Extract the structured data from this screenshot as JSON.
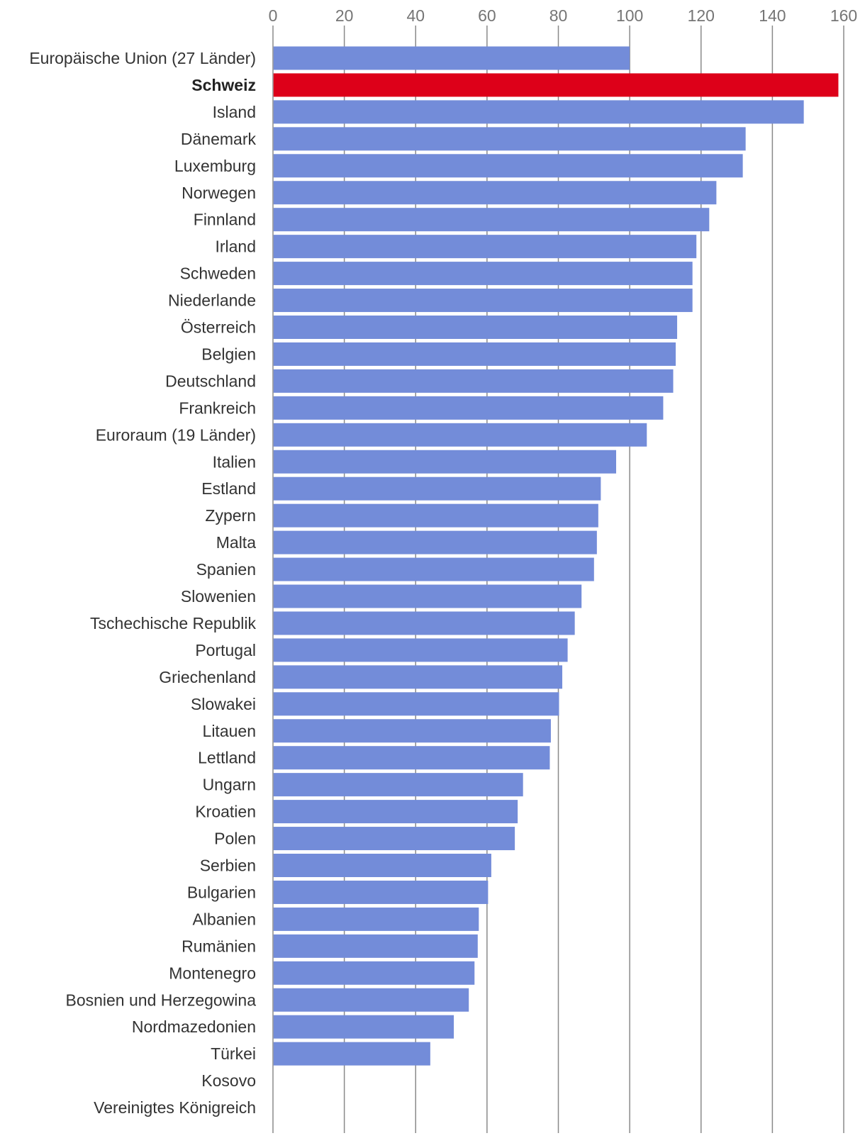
{
  "chart_data": {
    "type": "bar",
    "orientation": "horizontal",
    "title": "",
    "xlabel": "",
    "ylabel": "",
    "xlim": [
      0,
      160
    ],
    "ticks": [
      "0",
      "20",
      "40",
      "60",
      "80",
      "100",
      "120",
      "140",
      "160"
    ],
    "tick_values": [
      0,
      20,
      40,
      60,
      80,
      100,
      120,
      140,
      160
    ],
    "grid": true,
    "legend": "none",
    "default_color": "#738cd9",
    "highlight_color": "#dd0019",
    "categories": [
      "Europäische Union (27 Länder)",
      "Schweiz",
      "Island",
      "Dänemark",
      "Luxemburg",
      "Norwegen",
      "Finnland",
      "Irland",
      "Schweden",
      "Niederlande",
      "Österreich",
      "Belgien",
      "Deutschland",
      "Frankreich",
      "Euroraum (19 Länder)",
      "Italien",
      "Estland",
      "Zypern",
      "Malta",
      "Spanien",
      "Slowenien",
      "Tschechische Republik",
      "Portugal",
      "Griechenland",
      "Slowakei",
      "Litauen",
      "Lettland",
      "Ungarn",
      "Kroatien",
      "Polen",
      "Serbien",
      "Bulgarien",
      "Albanien",
      "Rumänien",
      "Montenegro",
      "Bosnien und Herzegowina",
      "Nordmazedonien",
      "Türkei",
      "Kosovo",
      "Vereinigtes Königreich"
    ],
    "values": [
      100,
      158.5,
      148.8,
      132.5,
      131.7,
      124.3,
      122.3,
      118.7,
      117.6,
      117.6,
      113.3,
      112.9,
      112.2,
      109.4,
      104.8,
      96.2,
      91.9,
      91.2,
      90.8,
      90.0,
      86.5,
      84.6,
      82.6,
      81.1,
      80.2,
      77.9,
      77.6,
      70.1,
      68.6,
      67.8,
      61.2,
      60.3,
      57.7,
      57.4,
      56.5,
      54.9,
      50.7,
      44.1,
      null,
      null
    ],
    "highlight": [
      "Schweiz"
    ]
  }
}
